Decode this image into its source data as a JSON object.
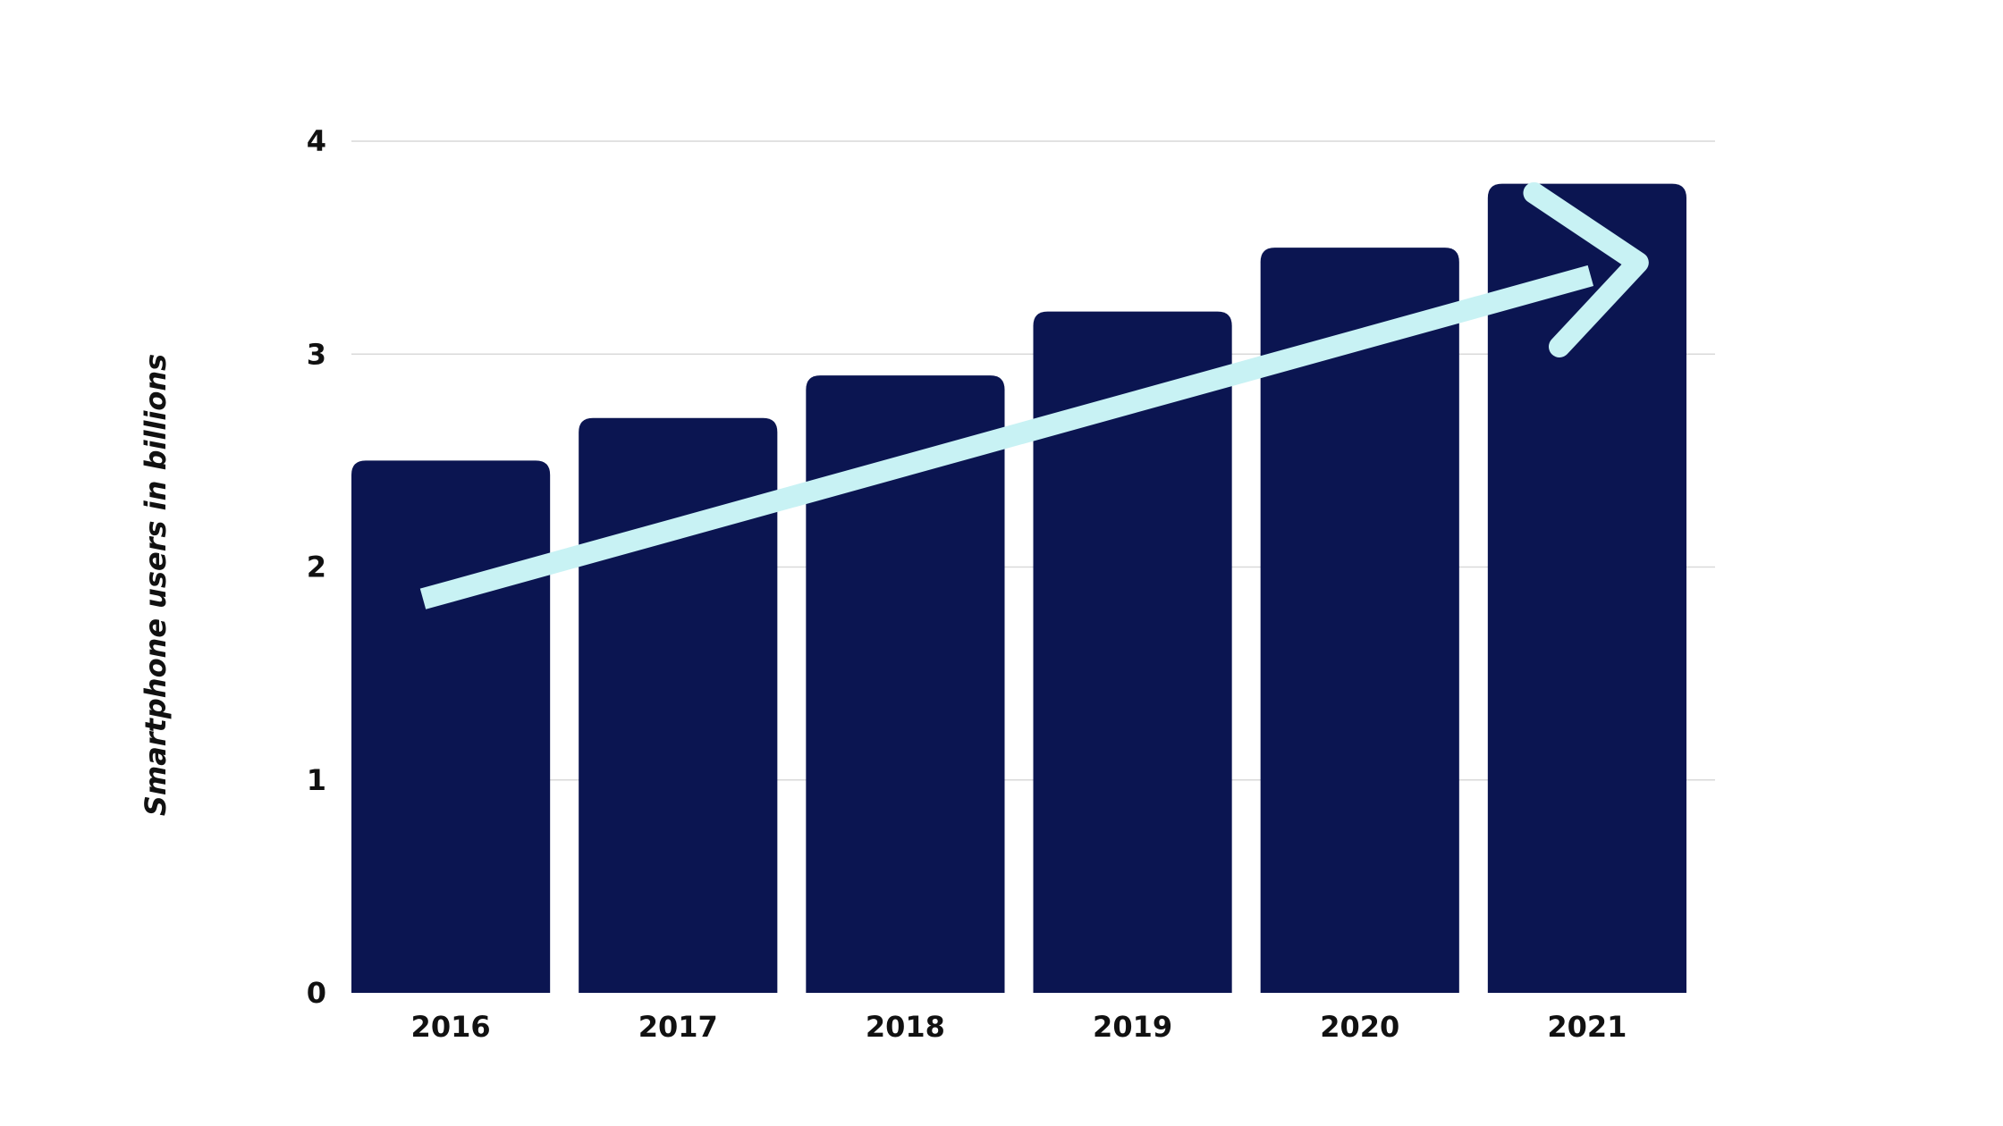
{
  "chart_data": {
    "type": "bar",
    "categories": [
      "2016",
      "2017",
      "2018",
      "2019",
      "2020",
      "2021"
    ],
    "values": [
      2.5,
      2.7,
      2.9,
      3.2,
      3.5,
      3.8
    ],
    "title": "",
    "xlabel": "",
    "ylabel": "Smartphone users in billions",
    "ylim": [
      0,
      4
    ],
    "yticks": [
      "0",
      "1",
      "2",
      "3",
      "4"
    ],
    "grid": true,
    "legend": "none",
    "annotations": [
      {
        "type": "trend-arrow",
        "from": {
          "x": "2016",
          "y": 1.85
        },
        "to": {
          "x": "2021",
          "y": 3.43
        }
      }
    ],
    "colors": {
      "bar": "#0b1551",
      "arrow": "#c8f2f4",
      "grid": "#d9d9d9",
      "text": "#111111"
    }
  }
}
